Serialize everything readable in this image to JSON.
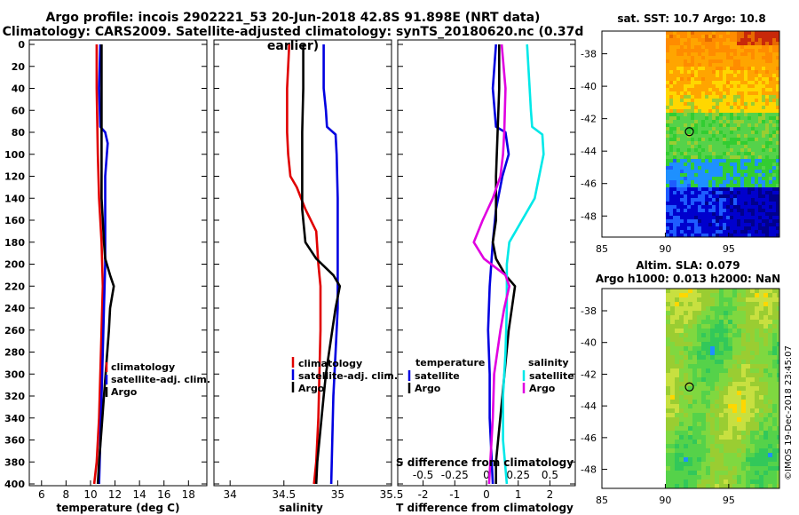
{
  "header": {
    "title_line1": "Argo profile: incois 2902221_53 20-Jun-2018 42.8S 91.898E (NRT data)",
    "title_line2": "Climatology: CARS2009. Satellite-adjusted climatology: synTS_20180620.nc (0.37d earlier)"
  },
  "colors": {
    "climatology": "#e00000",
    "satellite": "#0000e0",
    "argo": "#000000",
    "salinity_satellite": "#00e8e8",
    "salinity_argo": "#e000e0"
  },
  "chart_data": [
    {
      "type": "line",
      "panel": "temperature",
      "xlabel": "temperature (deg C)",
      "ylabel": "",
      "xlim": [
        5,
        19.5
      ],
      "ylim": [
        400,
        0
      ],
      "xticks": [
        "6",
        "8",
        "10",
        "12",
        "14",
        "16",
        "18"
      ],
      "yticks": [
        "0",
        "20",
        "40",
        "60",
        "80",
        "100",
        "120",
        "140",
        "160",
        "180",
        "200",
        "220",
        "240",
        "260",
        "280",
        "300",
        "320",
        "340",
        "360",
        "380",
        "400"
      ],
      "legend": [
        "climatology",
        "satellite-adj. clim.",
        "Argo"
      ],
      "legend_position": "right-middle",
      "series": [
        {
          "name": "climatology",
          "color": "#e00000",
          "points": [
            [
              10.5,
              0
            ],
            [
              10.5,
              40
            ],
            [
              10.6,
              100
            ],
            [
              10.7,
              140
            ],
            [
              10.9,
              180
            ],
            [
              11.0,
              220
            ],
            [
              10.9,
              260
            ],
            [
              10.8,
              300
            ],
            [
              10.7,
              340
            ],
            [
              10.5,
              380
            ],
            [
              10.3,
              400
            ]
          ]
        },
        {
          "name": "satellite-adj. clim.",
          "color": "#0000e0",
          "points": [
            [
              10.8,
              0
            ],
            [
              10.7,
              40
            ],
            [
              10.8,
              75
            ],
            [
              11.2,
              80
            ],
            [
              11.4,
              90
            ],
            [
              11.2,
              120
            ],
            [
              11.2,
              160
            ],
            [
              11.2,
              200
            ],
            [
              11.1,
              240
            ],
            [
              11.0,
              280
            ],
            [
              10.9,
              320
            ],
            [
              10.8,
              360
            ],
            [
              10.7,
              400
            ]
          ]
        },
        {
          "name": "Argo",
          "color": "#000000",
          "points": [
            [
              10.9,
              0
            ],
            [
              10.9,
              80
            ],
            [
              10.9,
              140
            ],
            [
              11.0,
              160
            ],
            [
              11.1,
              180
            ],
            [
              11.2,
              195
            ],
            [
              11.6,
              210
            ],
            [
              11.9,
              220
            ],
            [
              11.6,
              240
            ],
            [
              11.5,
              260
            ],
            [
              11.3,
              290
            ],
            [
              11.1,
              320
            ],
            [
              10.9,
              350
            ],
            [
              10.7,
              380
            ],
            [
              10.6,
              400
            ]
          ]
        }
      ]
    },
    {
      "type": "line",
      "panel": "salinity",
      "xlabel": "salinity",
      "ylabel": "",
      "xlim": [
        33.85,
        35.5
      ],
      "ylim": [
        400,
        0
      ],
      "xticks": [
        "34",
        "34.5",
        "35",
        "35.5"
      ],
      "legend": [
        "climatology",
        "satellite-adj. clim.",
        "Argo"
      ],
      "legend_position": "right-middle",
      "series": [
        {
          "name": "climatology",
          "color": "#e00000",
          "points": [
            [
              34.55,
              0
            ],
            [
              34.53,
              40
            ],
            [
              34.53,
              80
            ],
            [
              34.54,
              100
            ],
            [
              34.56,
              120
            ],
            [
              34.62,
              130
            ],
            [
              34.7,
              150
            ],
            [
              34.8,
              170
            ],
            [
              34.82,
              200
            ],
            [
              34.84,
              220
            ],
            [
              34.84,
              260
            ],
            [
              34.83,
              300
            ],
            [
              34.82,
              340
            ],
            [
              34.8,
              380
            ],
            [
              34.78,
              400
            ]
          ]
        },
        {
          "name": "satellite-adj. clim.",
          "color": "#0000e0",
          "points": [
            [
              34.87,
              0
            ],
            [
              34.87,
              40
            ],
            [
              34.89,
              60
            ],
            [
              34.9,
              75
            ],
            [
              34.98,
              82
            ],
            [
              34.99,
              100
            ],
            [
              35.0,
              140
            ],
            [
              35.0,
              200
            ],
            [
              35.0,
              240
            ],
            [
              34.98,
              280
            ],
            [
              34.96,
              320
            ],
            [
              34.95,
              360
            ],
            [
              34.94,
              400
            ]
          ]
        },
        {
          "name": "Argo",
          "color": "#000000",
          "points": [
            [
              34.68,
              0
            ],
            [
              34.68,
              40
            ],
            [
              34.67,
              80
            ],
            [
              34.67,
              120
            ],
            [
              34.67,
              150
            ],
            [
              34.7,
              180
            ],
            [
              34.8,
              195
            ],
            [
              34.96,
              210
            ],
            [
              35.02,
              220
            ],
            [
              34.98,
              240
            ],
            [
              34.95,
              260
            ],
            [
              34.92,
              280
            ],
            [
              34.89,
              300
            ],
            [
              34.87,
              320
            ],
            [
              34.85,
              340
            ],
            [
              34.83,
              360
            ],
            [
              34.81,
              380
            ],
            [
              34.8,
              400
            ]
          ]
        }
      ]
    },
    {
      "type": "line",
      "panel": "difference",
      "xlabel": "T difference from climatology",
      "xlabel_top": "S difference from climatology",
      "xlim": [
        -2.8,
        2.8
      ],
      "ylim": [
        400,
        0
      ],
      "xticks": [
        "-2",
        "-1",
        "0",
        "1",
        "2"
      ],
      "xticks_top": [
        "-0.5",
        "-0.25",
        "0",
        "0.25",
        "0.5"
      ],
      "legend_groups": [
        {
          "title": "temperature",
          "entries": [
            "satellite",
            "Argo"
          ]
        },
        {
          "title": "salinity",
          "entries": [
            "satellite",
            "Argo"
          ]
        }
      ],
      "series": [
        {
          "name": "temperature satellite",
          "color": "#0000e0",
          "points": [
            [
              0.3,
              0
            ],
            [
              0.2,
              40
            ],
            [
              0.3,
              75
            ],
            [
              0.6,
              80
            ],
            [
              0.7,
              100
            ],
            [
              0.5,
              120
            ],
            [
              0.3,
              150
            ],
            [
              0.2,
              180
            ],
            [
              0.1,
              220
            ],
            [
              0.05,
              260
            ],
            [
              0.1,
              300
            ],
            [
              0.1,
              340
            ],
            [
              0.2,
              400
            ]
          ]
        },
        {
          "name": "temperature Argo",
          "color": "#000000",
          "points": [
            [
              0.4,
              0
            ],
            [
              0.4,
              40
            ],
            [
              0.35,
              80
            ],
            [
              0.3,
              120
            ],
            [
              0.3,
              160
            ],
            [
              0.2,
              180
            ],
            [
              0.3,
              195
            ],
            [
              0.6,
              210
            ],
            [
              0.9,
              220
            ],
            [
              0.8,
              240
            ],
            [
              0.7,
              260
            ],
            [
              0.6,
              290
            ],
            [
              0.5,
              320
            ],
            [
              0.4,
              350
            ],
            [
              0.3,
              380
            ],
            [
              0.3,
              400
            ]
          ]
        },
        {
          "name": "salinity satellite",
          "color": "#00e8e8",
          "points": [
            [
              0.32,
              0
            ],
            [
              0.34,
              40
            ],
            [
              0.35,
              60
            ],
            [
              0.36,
              75
            ],
            [
              0.44,
              82
            ],
            [
              0.45,
              100
            ],
            [
              0.38,
              140
            ],
            [
              0.18,
              180
            ],
            [
              0.16,
              200
            ],
            [
              0.16,
              240
            ],
            [
              0.15,
              280
            ],
            [
              0.13,
              320
            ],
            [
              0.13,
              360
            ],
            [
              0.16,
              400
            ]
          ]
        },
        {
          "name": "salinity Argo",
          "color": "#e000e0",
          "points": [
            [
              0.12,
              0
            ],
            [
              0.15,
              40
            ],
            [
              0.14,
              80
            ],
            [
              0.13,
              100
            ],
            [
              0.11,
              120
            ],
            [
              0.05,
              140
            ],
            [
              -0.03,
              160
            ],
            [
              -0.1,
              180
            ],
            [
              -0.02,
              195
            ],
            [
              0.15,
              210
            ],
            [
              0.18,
              220
            ],
            [
              0.14,
              240
            ],
            [
              0.11,
              260
            ],
            [
              0.06,
              300
            ],
            [
              0.05,
              340
            ],
            [
              0.03,
              380
            ],
            [
              0.02,
              400
            ]
          ]
        }
      ]
    },
    {
      "type": "heatmap",
      "panel": "sst_map",
      "title": "sat. SST: 10.7 Argo: 10.8",
      "xticks": [
        "85",
        "90",
        "95"
      ],
      "yticks": [
        "-38",
        "-40",
        "-42",
        "-44",
        "-46",
        "-48"
      ],
      "xlim": [
        85,
        99
      ],
      "ylim": [
        -49,
        -37
      ],
      "marker": {
        "lon": 91.898,
        "lat": -42.8
      }
    },
    {
      "type": "heatmap",
      "panel": "sla_map",
      "title": "Altim. SLA: 0.079",
      "subtitle": "Argo h1000: 0.013 h2000: NaN",
      "xticks": [
        "85",
        "90",
        "95"
      ],
      "yticks": [
        "-38",
        "-40",
        "-42",
        "-44",
        "-46",
        "-48"
      ],
      "xlim": [
        85,
        99
      ],
      "ylim": [
        -49,
        -37
      ],
      "marker": {
        "lon": 91.898,
        "lat": -42.8
      }
    }
  ],
  "footer": {
    "credit": "©IMOS 19-Dec-2018 23:45:07"
  }
}
